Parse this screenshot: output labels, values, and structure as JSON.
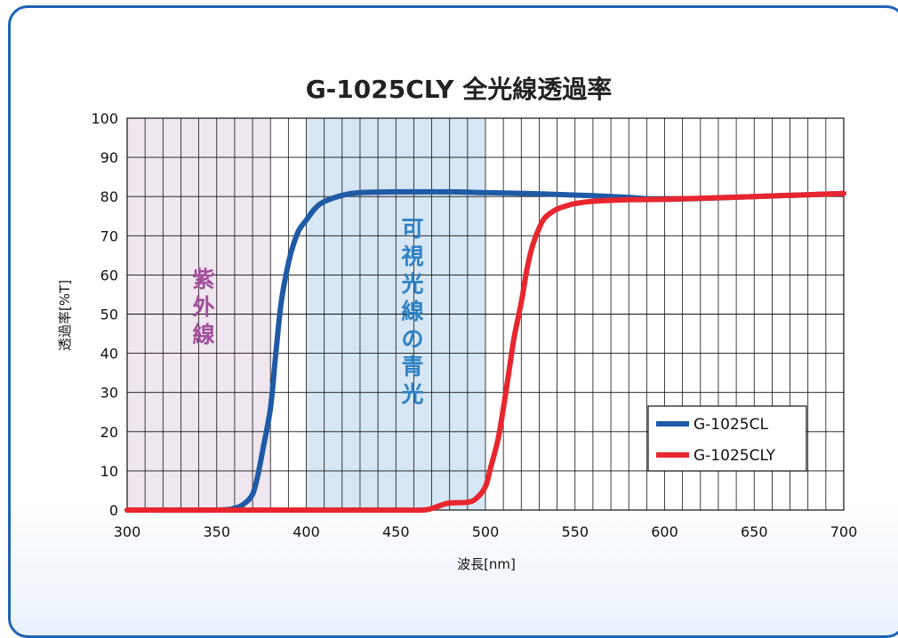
{
  "chart_data": {
    "type": "line",
    "title": "G-1025CLY 全光線透過率",
    "xlabel": "波長[nm]",
    "ylabel": "透過率[%T]",
    "xlim": [
      300,
      700
    ],
    "ylim": [
      0,
      100
    ],
    "x_ticks": [
      300,
      350,
      400,
      450,
      500,
      550,
      600,
      650,
      700
    ],
    "y_ticks": [
      0,
      10,
      20,
      30,
      40,
      50,
      60,
      70,
      80,
      90,
      100
    ],
    "x_minor_step": 10,
    "y_grid_step": 10,
    "grid": true,
    "legend_position": "bottom-right",
    "bands": [
      {
        "label": "紫外線",
        "x_range": [
          300,
          380
        ],
        "color": "#efe6f0",
        "text_color": "#a24d9b"
      },
      {
        "label": "可視光線の青光",
        "x_range": [
          400,
          500
        ],
        "color": "#d6e6f4",
        "text_color": "#2e82c4"
      }
    ],
    "series": [
      {
        "name": "G-1025CL",
        "color": "#1f5aa6",
        "x": [
          300,
          350,
          360,
          365,
          370,
          373,
          376,
          380,
          383,
          386,
          390,
          393,
          396,
          400,
          405,
          410,
          420,
          430,
          450,
          480,
          500,
          530,
          560,
          580,
          600,
          650,
          700
        ],
        "y": [
          0,
          0,
          0.5,
          1.5,
          4,
          9,
          16,
          26,
          40,
          53,
          63,
          68,
          71.5,
          74,
          77,
          78.7,
          80.3,
          81,
          81.2,
          81.2,
          81,
          80.7,
          80.2,
          79.8,
          79.3,
          80,
          80.8
        ]
      },
      {
        "name": "G-1025CLY",
        "color": "#e8262e",
        "x": [
          300,
          350,
          400,
          450,
          465,
          470,
          475,
          480,
          490,
          495,
          500,
          503,
          507,
          510,
          513,
          516,
          520,
          523,
          526,
          530,
          533,
          537,
          540,
          545,
          550,
          560,
          580,
          600,
          650,
          700
        ],
        "y": [
          0,
          0,
          0,
          0,
          0,
          0.4,
          1.2,
          1.8,
          2,
          3,
          6,
          11,
          18,
          26,
          35,
          44,
          53,
          61,
          67,
          72,
          74.5,
          76,
          76.8,
          77.6,
          78.2,
          78.8,
          79.2,
          79.3,
          80,
          80.8
        ]
      }
    ]
  }
}
